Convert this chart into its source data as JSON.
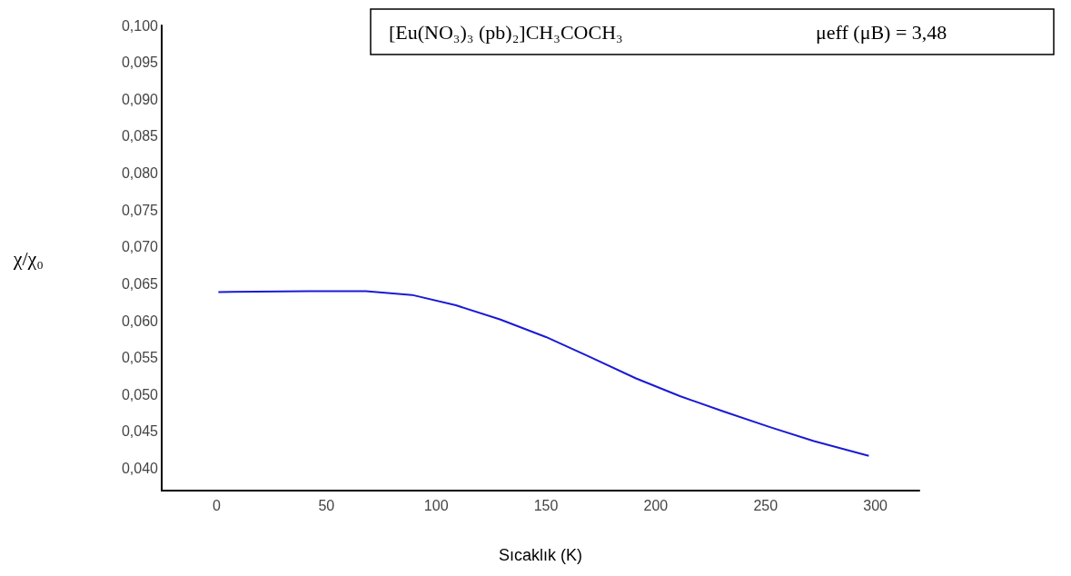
{
  "chart_data": {
    "type": "line",
    "title": "[Eu(NO₃)₃ (pb)₂]CH₃COCH₃",
    "subtitle": "μeff (μB) = 3,48",
    "xlabel": "Sıcaklık (K)",
    "ylabel": "χ/χ₀",
    "x": [
      0.8,
      42,
      68,
      89,
      109,
      129,
      150,
      170,
      191,
      211,
      231,
      252,
      272,
      297
    ],
    "series": [
      {
        "color": "#1a1ad6",
        "values": [
          0.0639,
          0.064,
          0.064,
          0.0635,
          0.0621,
          0.0602,
          0.0578,
          0.0551,
          0.0522,
          0.0498,
          0.0477,
          0.0456,
          0.0437,
          0.0417
        ]
      }
    ],
    "xlim": [
      -25,
      320
    ],
    "xticks": [
      0,
      50,
      100,
      150,
      200,
      250,
      300
    ],
    "ylim": [
      0.037,
      0.1
    ],
    "yticks": [
      {
        "value": 0.04,
        "label": "0,040"
      },
      {
        "value": 0.045,
        "label": "0,045"
      },
      {
        "value": 0.05,
        "label": "0,050"
      },
      {
        "value": 0.055,
        "label": "0,055"
      },
      {
        "value": 0.06,
        "label": "0,060"
      },
      {
        "value": 0.065,
        "label": "0,065"
      },
      {
        "value": 0.07,
        "label": "0,070"
      },
      {
        "value": 0.075,
        "label": "0,075"
      },
      {
        "value": 0.08,
        "label": "0,080"
      },
      {
        "value": 0.085,
        "label": "0,085"
      },
      {
        "value": 0.09,
        "label": "0,090"
      },
      {
        "value": 0.095,
        "label": "0,095"
      },
      {
        "value": 0.1,
        "label": "0,100"
      }
    ],
    "grid": false,
    "marker": "none"
  }
}
